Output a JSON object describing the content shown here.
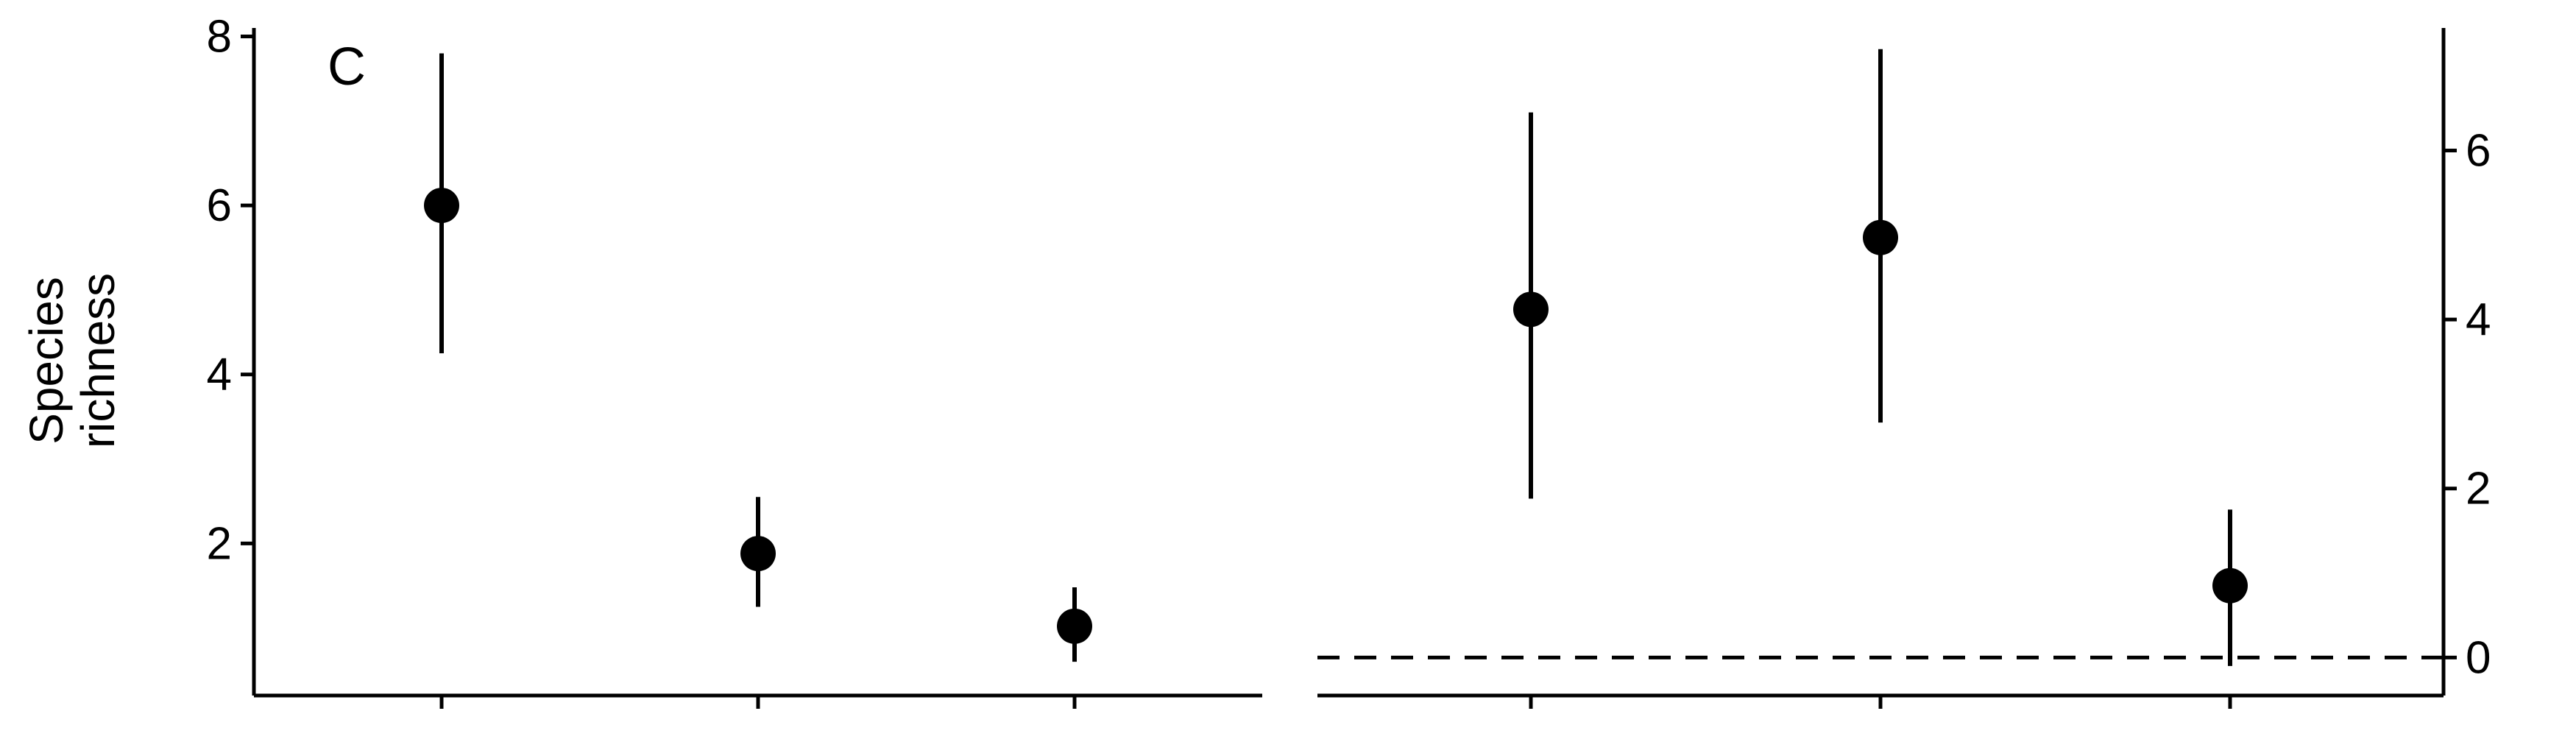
{
  "chart_data": [
    {
      "type": "scatter",
      "panel_label": "C",
      "ylabel": [
        "Species",
        "richness"
      ],
      "ylim": [
        0.2,
        8.1
      ],
      "yticks": [
        2,
        4,
        6,
        8
      ],
      "y_axis_side": "left",
      "x_tick_count": 3,
      "points": [
        {
          "y": 6.0,
          "lower": 4.25,
          "upper": 7.8
        },
        {
          "y": 1.88,
          "lower": 1.25,
          "upper": 2.55
        },
        {
          "y": 1.02,
          "lower": 0.6,
          "upper": 1.48
        }
      ]
    },
    {
      "type": "scatter",
      "ylim": [
        -0.45,
        7.45
      ],
      "yticks": [
        0,
        2,
        4,
        6
      ],
      "y_axis_side": "right",
      "x_tick_count": 3,
      "reference_line": {
        "y": 0,
        "style": "dashed"
      },
      "points": [
        {
          "y": 4.12,
          "lower": 1.88,
          "upper": 6.45
        },
        {
          "y": 4.97,
          "lower": 2.78,
          "upper": 7.2
        },
        {
          "y": 0.85,
          "lower": -0.1,
          "upper": 1.75
        }
      ]
    }
  ]
}
